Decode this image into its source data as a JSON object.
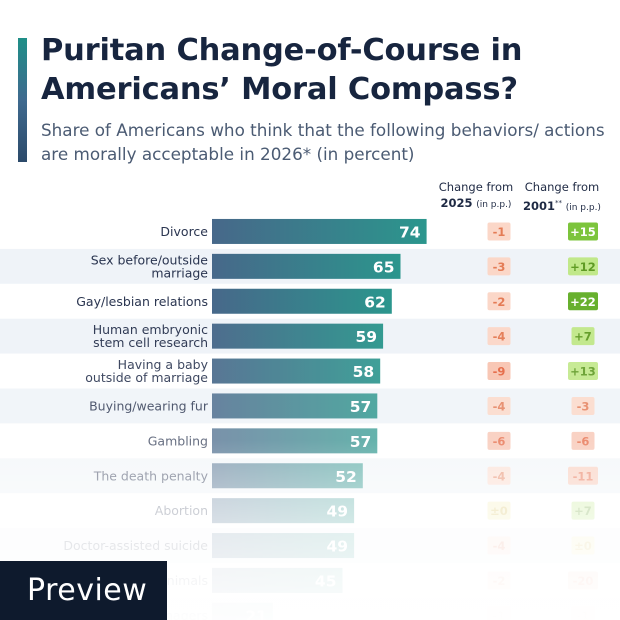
{
  "header": {
    "title": "Puritan Change-of-Course in Americans’ Moral Compass?",
    "subtitle": "Share of Americans who think that the following behaviors/ actions are morally acceptable in 2026* (in percent)"
  },
  "columns": {
    "change_2025_label": "Change from",
    "change_2025_year": "2025",
    "change_2025_unit": "(in p.p.)",
    "change_2001_label": "Change from",
    "change_2001_year": "2001",
    "change_2001_marks": "**",
    "change_2001_unit": "(in p.p.)"
  },
  "colors": {
    "bar_top": "#3f6a8f",
    "bar_bottom_teal": "#2a9a8f",
    "negative_badge": "#f4b29a",
    "negative_text": "#e0643f",
    "positive_badge": "#a8dd63",
    "positive_strong": "#6ab42e",
    "neutral_badge": "#f2ea9a",
    "row_stripe": "#f1f4f8"
  },
  "chart_data": {
    "type": "bar",
    "orientation": "horizontal",
    "title": "Puritan Change-of-Course in Americans’ Moral Compass?",
    "subtitle": "Share of Americans who think that the following behaviors/ actions are morally acceptable in 2026* (in percent)",
    "xlim": [
      0,
      100
    ],
    "categories": [
      "Divorce",
      "Sex before/outside marriage",
      "Gay/lesbian relations",
      "Human embryonic stem cell research",
      "Having a baby outside of marriage",
      "Buying/wearing fur",
      "Gambling",
      "The death penalty",
      "Abortion",
      "Doctor-assisted suicide",
      "Medical testing on animals",
      "Sex between teenagers"
    ],
    "values": [
      74,
      65,
      62,
      59,
      58,
      57,
      57,
      52,
      49,
      49,
      45,
      21
    ],
    "change_from_2025": [
      "-1",
      "-3",
      "-2",
      "-4",
      "-9",
      "-4",
      "-6",
      "-4",
      "±0",
      "-4",
      "-2",
      "-1"
    ],
    "change_from_2001": [
      "+15",
      "+12",
      "+22",
      "+7",
      "+13",
      "-3",
      "-6",
      "-11",
      "+7",
      "±0",
      "-20",
      "-1"
    ]
  },
  "footer": {
    "preview_label": "Preview"
  }
}
